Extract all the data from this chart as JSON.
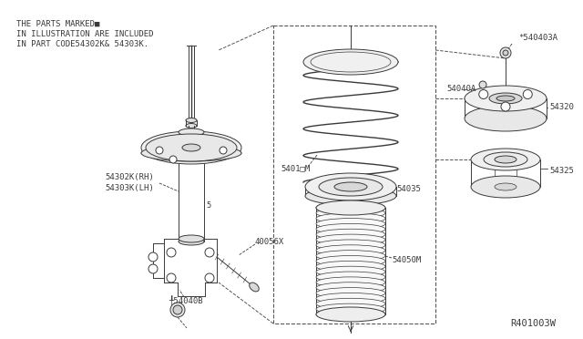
{
  "bg_color": "#ffffff",
  "line_color": "#3a3a3a",
  "note_lines": [
    "THE PARTS MARKED■",
    "IN ILLUSTRATION ARE INCLUDED",
    "IN PART CODE54302K& 54303K."
  ],
  "fig_width": 6.4,
  "fig_height": 3.72,
  "dpi": 100
}
